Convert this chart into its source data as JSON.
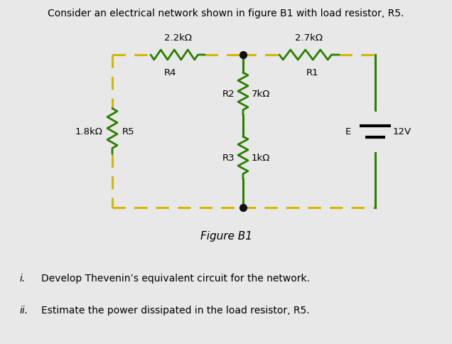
{
  "title": "Consider an electrical network shown in figure B1 with load resistor, R5.",
  "figure_label": "Figure B1",
  "question_i": "Develop Thevenin’s equivalent circuit for the network.",
  "question_ii": "Estimate the power dissipated in the load resistor, R5.",
  "bg_color": "#e8e8e8",
  "wire_yellow": "#d4b800",
  "wire_green": "#2a8000",
  "resistor_color": "#2a8000",
  "labels": {
    "val_R1": "2.7kΩ",
    "val_R2": "7kΩ",
    "val_R3": "1kΩ",
    "val_R4": "2.2kΩ",
    "val_R5": "1.8kΩ"
  }
}
